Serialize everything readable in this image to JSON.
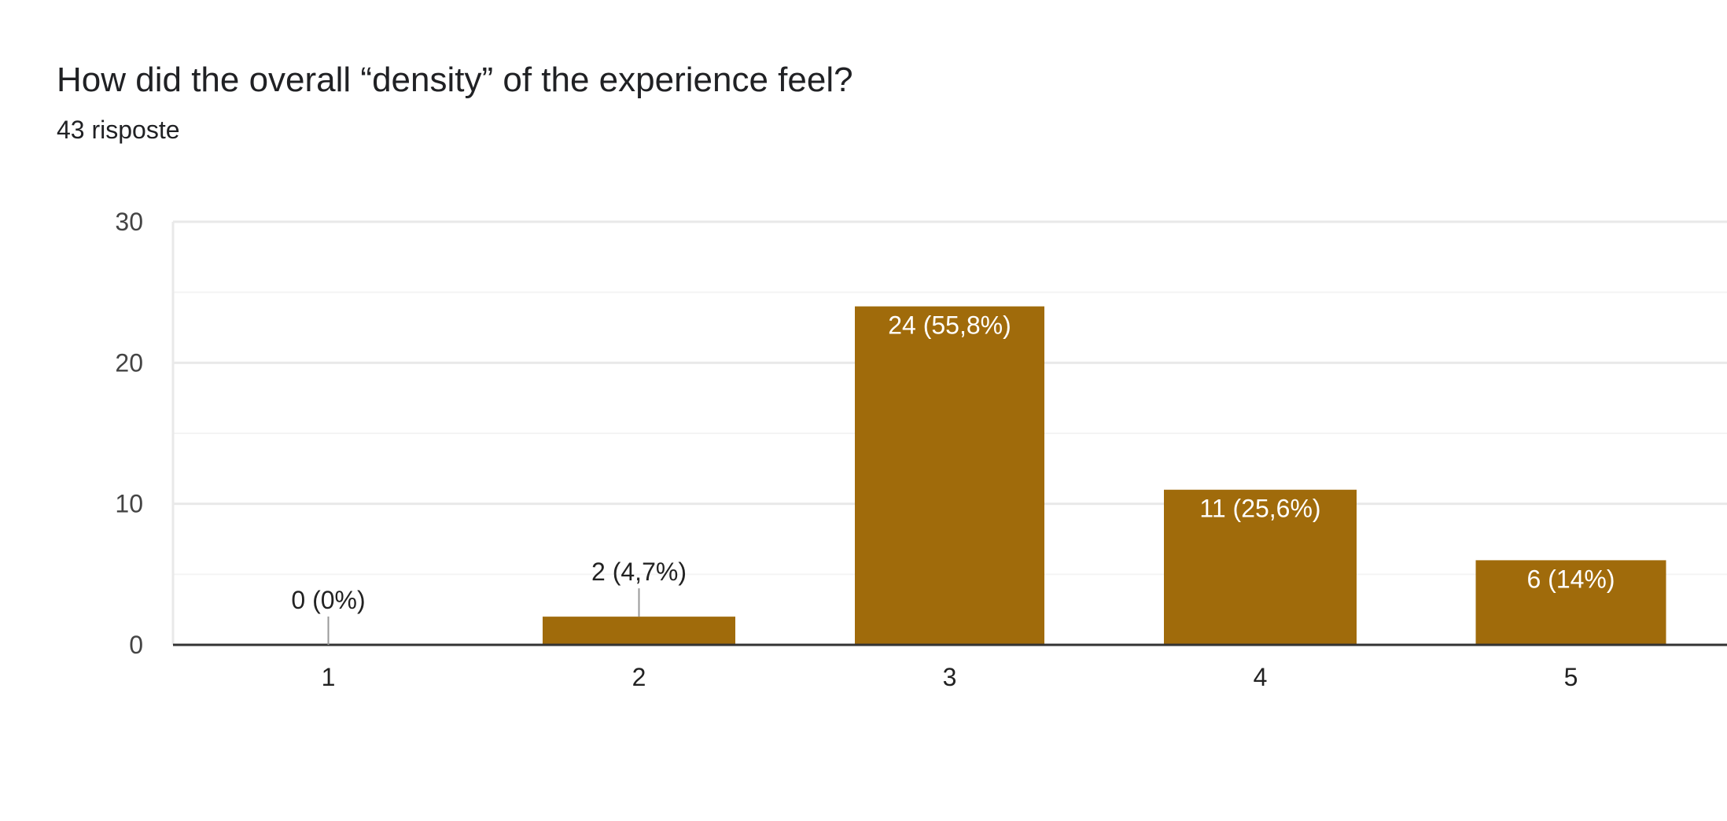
{
  "header": {
    "title": "How did the overall “density” of the experience feel?",
    "response_count": "43 risposte"
  },
  "chart_data": {
    "type": "bar",
    "categories": [
      "1",
      "2",
      "3",
      "4",
      "5"
    ],
    "values": [
      0,
      2,
      24,
      11,
      6
    ],
    "data_labels": [
      "0 (0%)",
      "2 (4,7%)",
      "24 (55,8%)",
      "11 (25,6%)",
      "6 (14%)"
    ],
    "y_ticks": [
      0,
      10,
      20,
      30
    ],
    "ylim": [
      0,
      30
    ],
    "grid": true,
    "legend": "none",
    "title": "How did the overall “density” of the experience feel?",
    "subtitle": "43 risposte",
    "xlabel": "",
    "ylabel": ""
  },
  "colors": {
    "bar": "#a06b0b",
    "label_inside": "#ffffff",
    "label_outside": "#222222",
    "grid_major": "#e9e9e9",
    "grid_minor": "#f4f4f4",
    "axis": "#333333",
    "leader": "#999999"
  }
}
